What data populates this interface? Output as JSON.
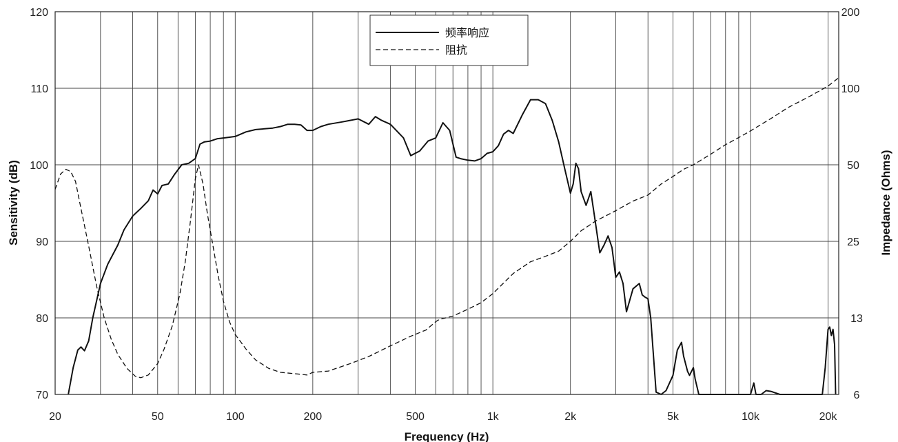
{
  "chart_data": {
    "type": "line",
    "xlabel": "Frequency (Hz)",
    "ylabel_left": "Sensitivity (dB)",
    "ylabel_right": "Impedance (Ohms)",
    "x_scale": "log",
    "xlim": [
      20,
      22000
    ],
    "ylim_left": [
      70,
      120
    ],
    "ylim_right": [
      6,
      200
    ],
    "x_ticks": [
      {
        "value": 20,
        "label": "20"
      },
      {
        "value": 50,
        "label": "50"
      },
      {
        "value": 100,
        "label": "100"
      },
      {
        "value": 200,
        "label": "200"
      },
      {
        "value": 500,
        "label": "500"
      },
      {
        "value": 1000,
        "label": "1k"
      },
      {
        "value": 2000,
        "label": "2k"
      },
      {
        "value": 5000,
        "label": "5k"
      },
      {
        "value": 10000,
        "label": "10k"
      },
      {
        "value": 20000,
        "label": "20k"
      }
    ],
    "x_minor_gridlines": [
      30,
      40,
      60,
      70,
      80,
      90,
      300,
      400,
      600,
      700,
      800,
      900,
      3000,
      4000,
      6000,
      7000,
      8000,
      9000
    ],
    "y_left_ticks": [
      "70",
      "80",
      "90",
      "100",
      "110",
      "120"
    ],
    "y_right_ticks": [
      "6",
      "13",
      "25",
      "50",
      "100",
      "200"
    ],
    "grid": true,
    "legend": {
      "position": "top-center",
      "entries": [
        {
          "label": "频率响应",
          "style": "solid"
        },
        {
          "label": "阻抗",
          "style": "dashed"
        }
      ]
    },
    "series": [
      {
        "name": "频率响应",
        "axis": "left",
        "style": "solid",
        "x": [
          22.5,
          23.5,
          24.5,
          25.2,
          26,
          27,
          28,
          30,
          32,
          35,
          37,
          40,
          43,
          46,
          48,
          50,
          52,
          55,
          58,
          62,
          66,
          70,
          73,
          76,
          80,
          85,
          90,
          95,
          100,
          110,
          120,
          130,
          140,
          150,
          160,
          170,
          180,
          190,
          200,
          215,
          230,
          260,
          300,
          330,
          350,
          370,
          400,
          450,
          480,
          520,
          560,
          600,
          640,
          680,
          720,
          750,
          800,
          850,
          900,
          950,
          1000,
          1050,
          1100,
          1150,
          1200,
          1300,
          1400,
          1500,
          1600,
          1700,
          1800,
          1900,
          2000,
          2050,
          2100,
          2150,
          2200,
          2300,
          2400,
          2500,
          2600,
          2700,
          2800,
          2900,
          3000,
          3100,
          3200,
          3300,
          3500,
          3700,
          3800,
          3900,
          4000,
          4100,
          4300,
          4500,
          4700,
          5000,
          5200,
          5400,
          5500,
          5700,
          5800,
          6000,
          6100,
          6300,
          7000,
          8000,
          9000,
          9500,
          10000,
          10300,
          10500,
          11000,
          11500,
          12000,
          13000,
          15000,
          17000,
          19000,
          19500,
          20000,
          20300,
          20600,
          20900,
          21200,
          21400
        ],
        "y": [
          70,
          73.5,
          75.8,
          76.2,
          75.7,
          77,
          80,
          84.5,
          87,
          89.5,
          91.5,
          93.3,
          94.3,
          95.3,
          96.7,
          96.2,
          97.3,
          97.5,
          98.7,
          100,
          100.2,
          100.8,
          102.7,
          103,
          103.1,
          103.4,
          103.5,
          103.6,
          103.7,
          104.3,
          104.6,
          104.7,
          104.8,
          105,
          105.3,
          105.3,
          105.2,
          104.5,
          104.5,
          105,
          105.3,
          105.6,
          106,
          105.3,
          106.3,
          105.8,
          105.3,
          103.5,
          101.2,
          101.8,
          103.1,
          103.5,
          105.5,
          104.5,
          101,
          100.8,
          100.6,
          100.5,
          100.8,
          101.5,
          101.7,
          102.5,
          104,
          104.5,
          104.1,
          106.5,
          108.5,
          108.5,
          108,
          105.8,
          103,
          99.5,
          96.3,
          97.5,
          100.2,
          99.5,
          96.5,
          94.7,
          96.5,
          92.5,
          88.5,
          89.5,
          90.7,
          89.2,
          85.3,
          86,
          84.5,
          80.8,
          83.8,
          84.5,
          83,
          82.7,
          82.5,
          80,
          70.3,
          70,
          70.5,
          72.5,
          75.8,
          76.8,
          75,
          73,
          72.5,
          73.5,
          72,
          70,
          70,
          70,
          70,
          70,
          70,
          71.5,
          70,
          70,
          70.5,
          70.4,
          70,
          70,
          70,
          70,
          73.5,
          78.5,
          78.8,
          77.7,
          78.5,
          76.5,
          70
        ]
      },
      {
        "name": "阻抗",
        "axis": "right",
        "style": "dashed",
        "x": [
          20,
          21,
          22,
          23,
          24,
          25,
          27,
          29,
          31,
          33,
          35,
          38,
          41,
          43,
          46,
          50,
          53,
          57,
          61,
          64,
          67,
          70,
          72,
          75,
          78,
          82,
          86,
          90,
          95,
          100,
          110,
          120,
          135,
          150,
          170,
          190,
          200,
          230,
          280,
          330,
          400,
          480,
          550,
          600,
          620,
          700,
          800,
          900,
          1000,
          1100,
          1200,
          1400,
          1600,
          1800,
          2000,
          2200,
          2500,
          3000,
          3500,
          4000,
          4500,
          5000,
          5500,
          6000,
          7000,
          8000,
          9000,
          10000,
          12000,
          14000,
          17000,
          20000,
          22000
        ],
        "y": [
          40,
          46,
          48,
          47,
          43,
          35,
          24,
          17,
          13,
          10.5,
          9,
          7.8,
          7.2,
          7.1,
          7.3,
          8.2,
          9.5,
          12,
          16,
          21,
          30,
          44,
          50,
          42,
          32,
          24,
          18.5,
          15,
          12.5,
          11,
          9.5,
          8.5,
          7.8,
          7.5,
          7.4,
          7.3,
          7.5,
          7.6,
          8.2,
          8.8,
          9.8,
          10.8,
          11.5,
          12.5,
          12.8,
          13.2,
          14,
          14.8,
          16,
          17.5,
          19,
          21,
          22,
          23,
          25,
          27.5,
          30,
          33,
          36,
          38,
          42,
          45,
          48,
          50,
          55,
          60,
          64,
          68,
          76,
          84,
          93,
          102,
          110
        ]
      }
    ]
  }
}
